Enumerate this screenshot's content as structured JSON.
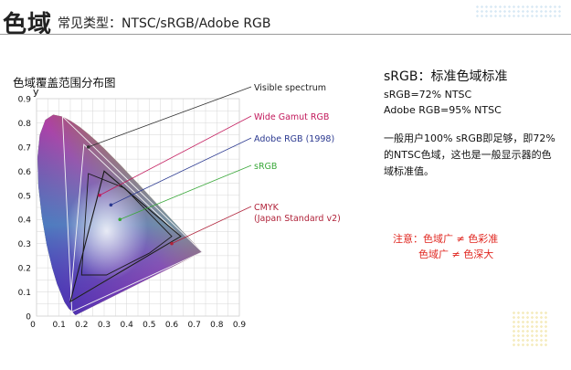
{
  "header": {
    "title": "色域",
    "subtitle": "常见类型：NTSC/sRGB/Adobe RGB"
  },
  "chart": {
    "title": "色域覆盖范围分布图",
    "y_axis_label": "y",
    "y_ticks": [
      "0.9",
      "0.8",
      "0.7",
      "0.6",
      "0.5",
      "0.4",
      "0.3",
      "0.2",
      "0.1",
      "0"
    ],
    "x_ticks": [
      "0.1",
      "0.2",
      "0.3",
      "0.4",
      "0.5",
      "0.6",
      "0.7",
      "0.8",
      "0.9"
    ],
    "x_tick_extra": "0",
    "annotations": [
      {
        "text": "Visible spectrum",
        "color": "#222222"
      },
      {
        "text": "Wide Gamut RGB",
        "color": "#c2185b"
      },
      {
        "text": "Adobe RGB (1998)",
        "color": "#2b3990"
      },
      {
        "text": "sRGB",
        "color": "#3aa83a"
      },
      {
        "text": "CMYK",
        "color": "#b0233a"
      },
      {
        "text": "(Japan Standard v2)",
        "color": "#b0233a"
      }
    ]
  },
  "chart_data": {
    "type": "scatter",
    "title": "色域覆盖范围分布图",
    "xlabel": "",
    "ylabel": "y",
    "xlim": [
      0,
      0.9
    ],
    "ylim": [
      0,
      0.9
    ],
    "grid": true,
    "series": [
      {
        "name": "Wide Gamut RGB",
        "x": [
          0.735,
          0.115,
          0.157
        ],
        "y": [
          0.265,
          0.826,
          0.018
        ]
      },
      {
        "name": "Adobe RGB (1998)",
        "x": [
          0.64,
          0.21,
          0.15
        ],
        "y": [
          0.33,
          0.71,
          0.06
        ]
      },
      {
        "name": "sRGB",
        "x": [
          0.64,
          0.3,
          0.15
        ],
        "y": [
          0.33,
          0.6,
          0.06
        ]
      },
      {
        "name": "CMYK (Japan Standard v2)",
        "x": [
          0.6,
          0.39,
          0.23,
          0.2,
          0.31,
          0.5
        ],
        "y": [
          0.33,
          0.53,
          0.59,
          0.17,
          0.17,
          0.26
        ]
      }
    ]
  },
  "right": {
    "heading": "sRGB：标准色域标准",
    "line1": "sRGB=72% NTSC",
    "line2": "Adobe RGB=95% NTSC",
    "paragraph": "一般用户100% sRGB即足够，即72%的NTSC色域，这也是一般显示器的色域标准值。",
    "note1": "注意：色域广 ≠ 色彩准",
    "note2": "色域广 ≠ 色深大"
  }
}
